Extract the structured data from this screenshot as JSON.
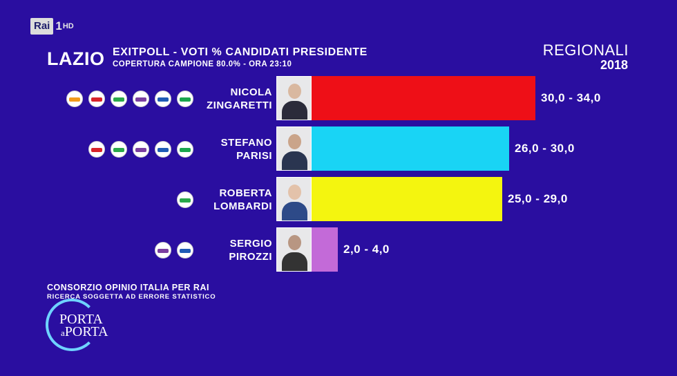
{
  "broadcaster": {
    "logo": "Rai",
    "channel": "1",
    "hd": "HD"
  },
  "header": {
    "region": "LAZIO",
    "title": "EXITPOLL - VOTI % CANDIDATI PRESIDENTE",
    "subtitle": "COPERTURA CAMPIONE 80.0% - ORA 23:10",
    "election": "REGIONALI",
    "year": "2018"
  },
  "chart_data": {
    "type": "bar",
    "orientation": "horizontal",
    "title": "EXITPOLL - VOTI % CANDIDATI PRESIDENTE",
    "categories": [
      "NICOLA ZINGARETTI",
      "STEFANO PARISI",
      "ROBERTA LOMBARDI",
      "SERGIO PIROZZI"
    ],
    "candidates": [
      {
        "first": "NICOLA",
        "last": "ZINGARETTI",
        "low": 30.0,
        "high": 34.0,
        "label": "30,0 - 34,0",
        "color": "#ee0f17",
        "party_count": 6
      },
      {
        "first": "STEFANO",
        "last": "PARISI",
        "low": 26.0,
        "high": 30.0,
        "label": "26,0 - 30,0",
        "color": "#19d4f5",
        "party_count": 5
      },
      {
        "first": "ROBERTA",
        "last": "LOMBARDI",
        "low": 25.0,
        "high": 29.0,
        "label": "25,0 - 29,0",
        "color": "#f4f50f",
        "party_count": 1
      },
      {
        "first": "SERGIO",
        "last": "PIROZZI",
        "low": 2.0,
        "high": 4.0,
        "label": "2,0 - 4,0",
        "color": "#c36ad8",
        "party_count": 2
      }
    ],
    "xlim": [
      0,
      34
    ]
  },
  "footer": {
    "source": "CONSORZIO OPINIO ITALIA PER RAI",
    "disclaimer": "RICERCA SOGGETTA AD ERRORE STATISTICO"
  },
  "show": {
    "line1": "PORTA",
    "line2": "a",
    "line3": "PORTA"
  }
}
